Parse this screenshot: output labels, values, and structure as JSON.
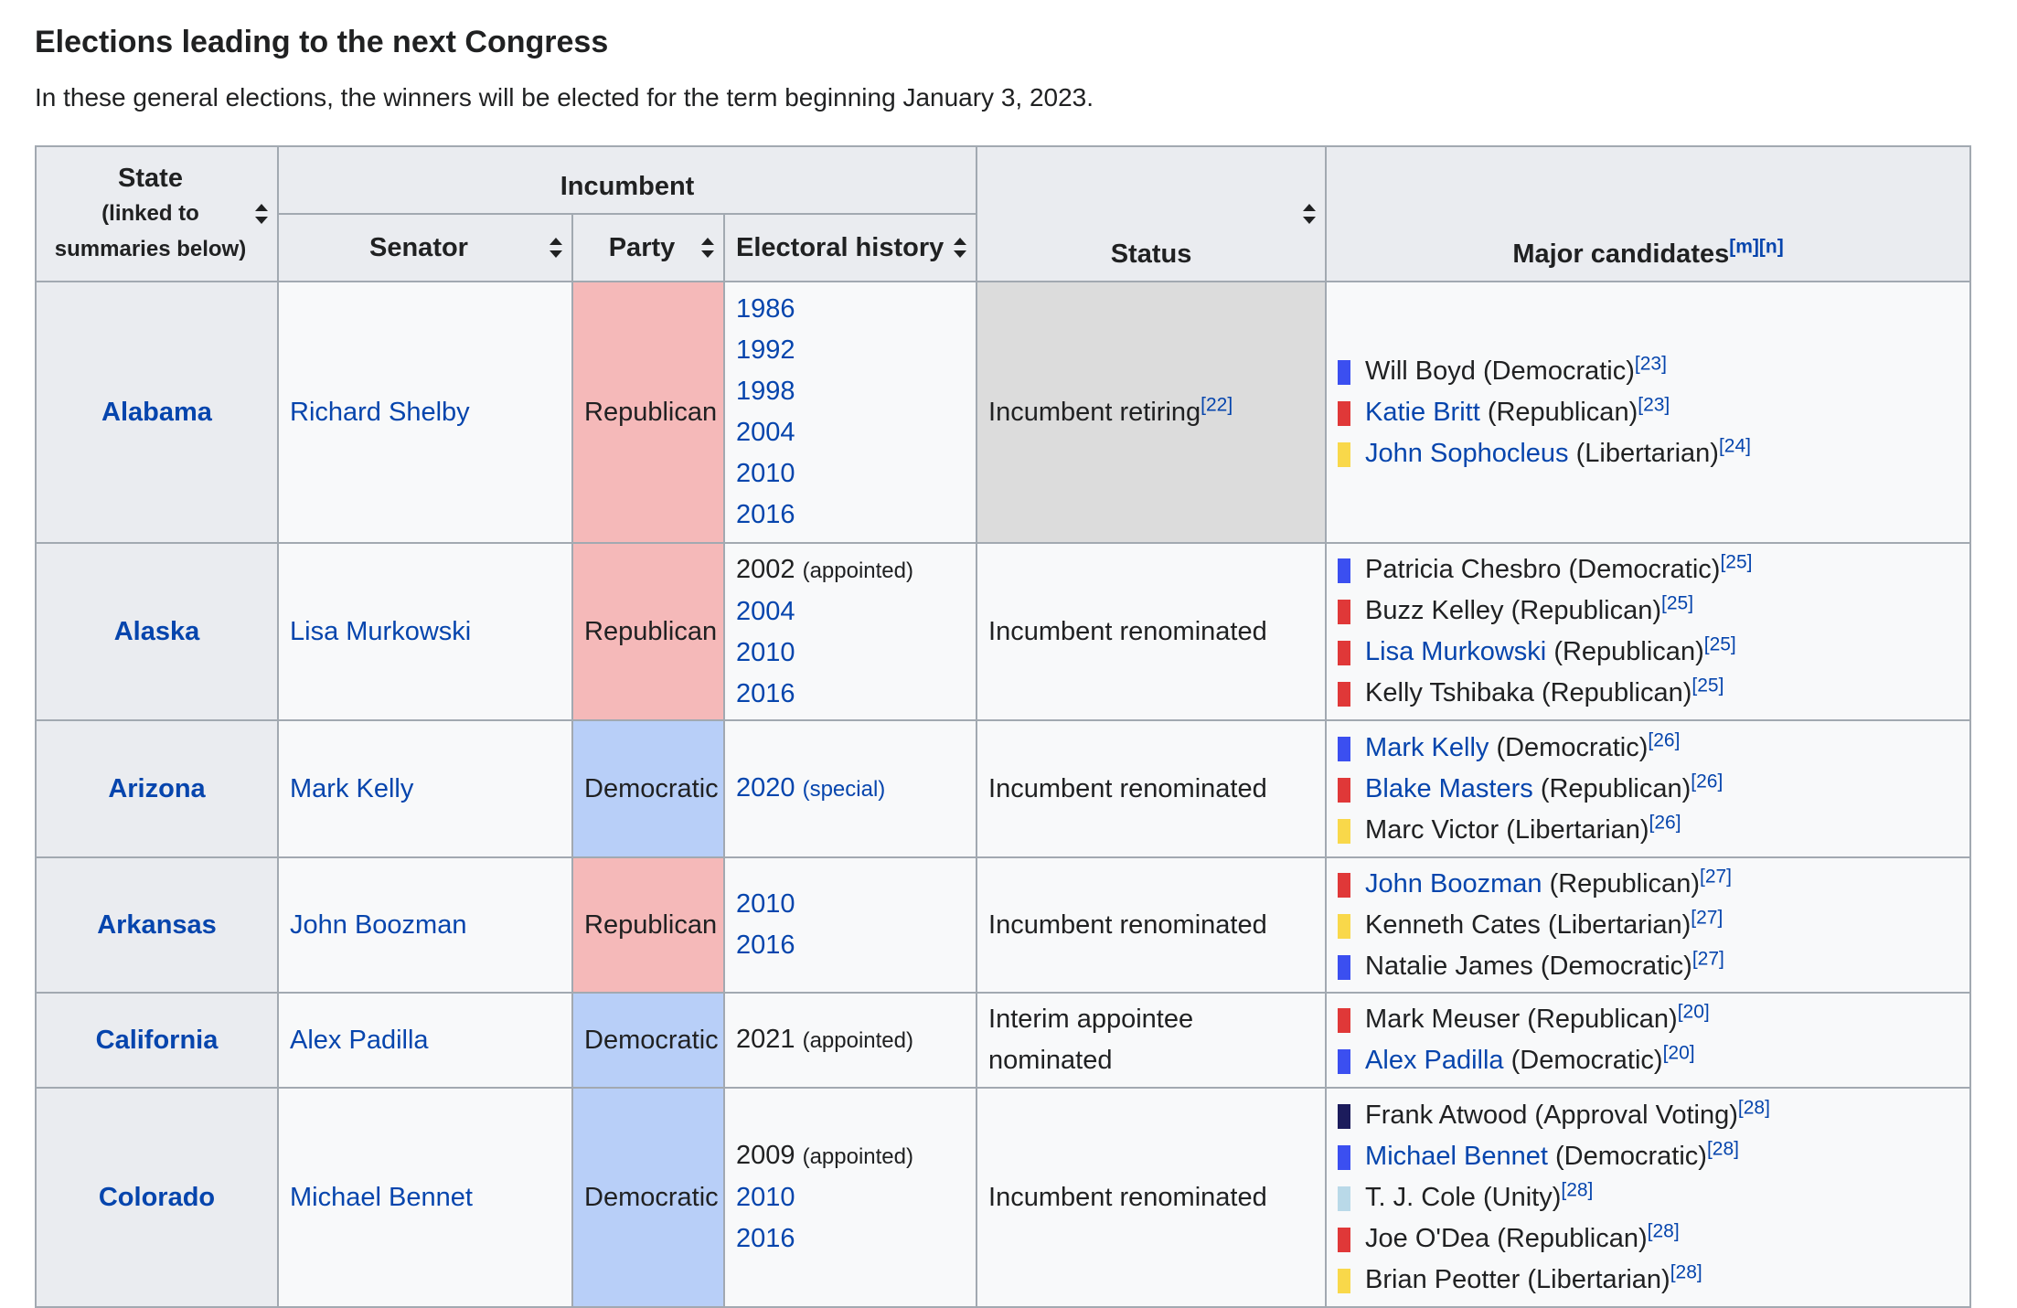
{
  "heading": "Elections leading to the next Congress",
  "intro": "In these general elections, the winners will be elected for the term beginning January 3, 2023.",
  "colors": {
    "republican_bg": "#f5b9b9",
    "democratic_bg": "#b8cff8",
    "retiring_bg": "#dcdcdc",
    "democratic": "#3b4ff0",
    "republican": "#e03838",
    "libertarian": "#f9d84a",
    "approval_voting": "#1c1c5c",
    "unity": "#b9d9e8"
  },
  "headers": {
    "state": "State",
    "state_note1": "(linked to",
    "state_note2": "summaries below)",
    "incumbent": "Incumbent",
    "senator": "Senator",
    "party": "Party",
    "history": "Electoral history",
    "status": "Status",
    "candidates": "Major candidates",
    "candidates_ref_m": "[m]",
    "candidates_ref_n": "[n]"
  },
  "rows": [
    {
      "state": "Alabama",
      "senator": "Richard Shelby",
      "party": "Republican",
      "party_key": "republican",
      "history": [
        {
          "year": "1986",
          "note": "",
          "link": true
        },
        {
          "year": "1992",
          "note": "",
          "link": true
        },
        {
          "year": "1998",
          "note": "",
          "link": true
        },
        {
          "year": "2004",
          "note": "",
          "link": true
        },
        {
          "year": "2010",
          "note": "",
          "link": true
        },
        {
          "year": "2016",
          "note": "",
          "link": true
        }
      ],
      "status": "Incumbent retiring",
      "status_ref": "[22]",
      "retiring": true,
      "candidates": [
        {
          "name": "Will Boyd",
          "party": "(Democratic)",
          "ref": "[23]",
          "color": "democratic",
          "link": false
        },
        {
          "name": "Katie Britt",
          "party": "(Republican)",
          "ref": "[23]",
          "color": "republican",
          "link": true
        },
        {
          "name": "John Sophocleus",
          "party": "(Libertarian)",
          "ref": "[24]",
          "color": "libertarian",
          "link": true
        }
      ]
    },
    {
      "state": "Alaska",
      "senator": "Lisa Murkowski",
      "party": "Republican",
      "party_key": "republican",
      "history": [
        {
          "year": "2002",
          "note": "(appointed)",
          "link": false
        },
        {
          "year": "2004",
          "note": "",
          "link": true
        },
        {
          "year": "2010",
          "note": "",
          "link": true
        },
        {
          "year": "2016",
          "note": "",
          "link": true
        }
      ],
      "status": "Incumbent renominated",
      "status_ref": "",
      "retiring": false,
      "candidates": [
        {
          "name": "Patricia Chesbro",
          "party": "(Democratic)",
          "ref": "[25]",
          "color": "democratic",
          "link": false
        },
        {
          "name": "Buzz Kelley",
          "party": "(Republican)",
          "ref": "[25]",
          "color": "republican",
          "link": false
        },
        {
          "name": "Lisa Murkowski",
          "party": "(Republican)",
          "ref": "[25]",
          "color": "republican",
          "link": true
        },
        {
          "name": "Kelly Tshibaka",
          "party": "(Republican)",
          "ref": "[25]",
          "color": "republican",
          "link": false
        }
      ]
    },
    {
      "state": "Arizona",
      "senator": "Mark Kelly",
      "party": "Democratic",
      "party_key": "democratic",
      "history": [
        {
          "year": "2020",
          "note": "(special)",
          "link": true
        }
      ],
      "status": "Incumbent renominated",
      "status_ref": "",
      "retiring": false,
      "candidates": [
        {
          "name": "Mark Kelly",
          "party": "(Democratic)",
          "ref": "[26]",
          "color": "democratic",
          "link": true
        },
        {
          "name": "Blake Masters",
          "party": "(Republican)",
          "ref": "[26]",
          "color": "republican",
          "link": true
        },
        {
          "name": "Marc Victor",
          "party": "(Libertarian)",
          "ref": "[26]",
          "color": "libertarian",
          "link": false
        }
      ]
    },
    {
      "state": "Arkansas",
      "senator": "John Boozman",
      "party": "Republican",
      "party_key": "republican",
      "history": [
        {
          "year": "2010",
          "note": "",
          "link": true
        },
        {
          "year": "2016",
          "note": "",
          "link": true
        }
      ],
      "status": "Incumbent renominated",
      "status_ref": "",
      "retiring": false,
      "candidates": [
        {
          "name": "John Boozman",
          "party": "(Republican)",
          "ref": "[27]",
          "color": "republican",
          "link": true
        },
        {
          "name": "Kenneth Cates",
          "party": "(Libertarian)",
          "ref": "[27]",
          "color": "libertarian",
          "link": false
        },
        {
          "name": "Natalie James",
          "party": "(Democratic)",
          "ref": "[27]",
          "color": "democratic",
          "link": false
        }
      ]
    },
    {
      "state": "California",
      "senator": "Alex Padilla",
      "party": "Democratic",
      "party_key": "democratic",
      "history": [
        {
          "year": "2021",
          "note": "(appointed)",
          "link": false
        }
      ],
      "status": "Interim appointee nominated",
      "status_ref": "",
      "retiring": false,
      "candidates": [
        {
          "name": "Mark Meuser",
          "party": "(Republican)",
          "ref": "[20]",
          "color": "republican",
          "link": false
        },
        {
          "name": "Alex Padilla",
          "party": "(Democratic)",
          "ref": "[20]",
          "color": "democratic",
          "link": true
        }
      ]
    },
    {
      "state": "Colorado",
      "senator": "Michael Bennet",
      "party": "Democratic",
      "party_key": "democratic",
      "history": [
        {
          "year": "2009",
          "note": "(appointed)",
          "link": false
        },
        {
          "year": "2010",
          "note": "",
          "link": true
        },
        {
          "year": "2016",
          "note": "",
          "link": true
        }
      ],
      "status": "Incumbent renominated",
      "status_ref": "",
      "retiring": false,
      "candidates": [
        {
          "name": "Frank Atwood",
          "party": "(Approval Voting)",
          "ref": "[28]",
          "color": "approval_voting",
          "link": false
        },
        {
          "name": "Michael Bennet",
          "party": "(Democratic)",
          "ref": "[28]",
          "color": "democratic",
          "link": true
        },
        {
          "name": "T. J. Cole",
          "party": "(Unity)",
          "ref": "[28]",
          "color": "unity",
          "link": false
        },
        {
          "name": "Joe O'Dea",
          "party": "(Republican)",
          "ref": "[28]",
          "color": "republican",
          "link": false
        },
        {
          "name": "Brian Peotter",
          "party": "(Libertarian)",
          "ref": "[28]",
          "color": "libertarian",
          "link": false
        }
      ]
    }
  ]
}
